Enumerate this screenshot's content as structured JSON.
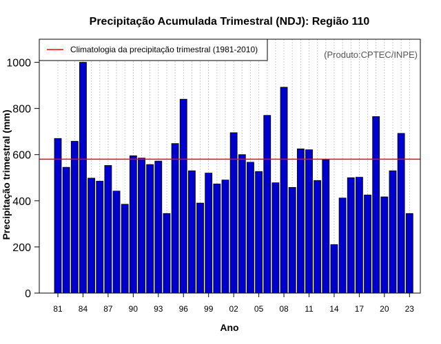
{
  "chart_data": {
    "type": "bar",
    "title": "Precipitação Acumulada Trimestral (NDJ): Região 110",
    "xlabel": "Ano",
    "ylabel": "Precipitação trimestral (mm)",
    "credit": "(Produto:CPTEC/INPE)",
    "ylim": [
      0,
      1100
    ],
    "yticks": [
      0,
      200,
      400,
      600,
      800,
      1000
    ],
    "xtick_labels": [
      "81",
      "84",
      "87",
      "90",
      "93",
      "96",
      "99",
      "02",
      "05",
      "08",
      "11",
      "14",
      "17",
      "20",
      "23"
    ],
    "xtick_years": [
      1981,
      1984,
      1987,
      1990,
      1993,
      1996,
      1999,
      2002,
      2005,
      2008,
      2011,
      2014,
      2017,
      2020,
      2023
    ],
    "years": [
      1981,
      1982,
      1983,
      1984,
      1985,
      1986,
      1987,
      1988,
      1989,
      1990,
      1991,
      1992,
      1993,
      1994,
      1995,
      1996,
      1997,
      1998,
      1999,
      2000,
      2001,
      2002,
      2003,
      2004,
      2005,
      2006,
      2007,
      2008,
      2009,
      2010,
      2011,
      2012,
      2013,
      2014,
      2015,
      2016,
      2017,
      2018,
      2019,
      2020,
      2021,
      2022,
      2023
    ],
    "values": [
      670,
      545,
      658,
      1000,
      498,
      485,
      553,
      442,
      385,
      595,
      585,
      557,
      572,
      345,
      648,
      840,
      530,
      390,
      520,
      473,
      490,
      695,
      600,
      567,
      527,
      770,
      478,
      892,
      458,
      625,
      621,
      488,
      578,
      210,
      412,
      500,
      502,
      425,
      765,
      417,
      530,
      692,
      345
    ],
    "series_color": "#0000cd",
    "climatology": {
      "label": "Climatologia da precipitação trimestral (1981-2010)",
      "value": 580,
      "color": "#ff0000"
    },
    "legend_position": "top-left",
    "grid": "vertical dotted"
  }
}
